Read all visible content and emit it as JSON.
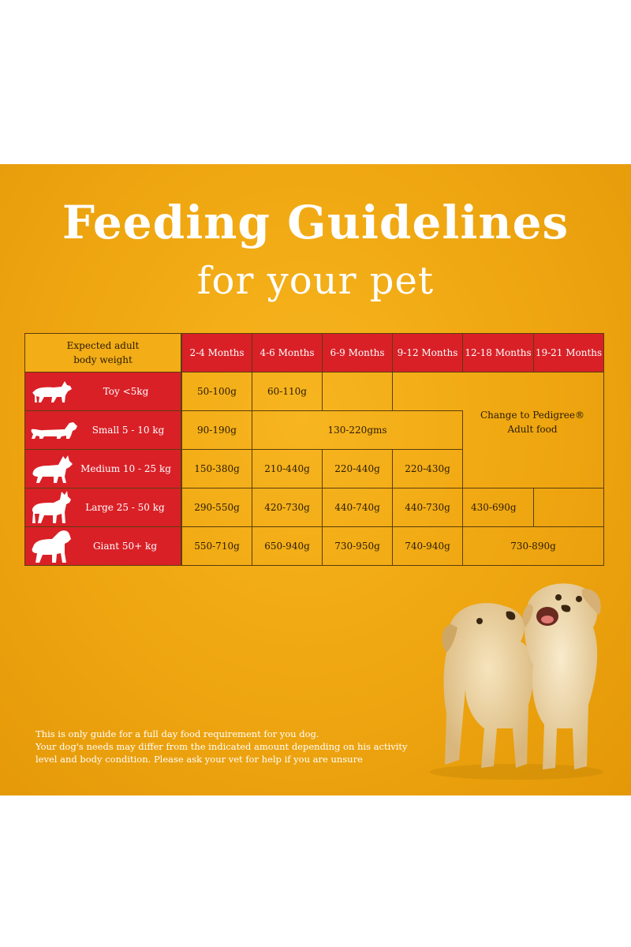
{
  "title": "Feeding Guidelines",
  "subtitle": "for your pet",
  "table": {
    "corner_label": [
      "Expected adult",
      "body weight"
    ],
    "columns": [
      "2-4 Months",
      "4-6 Months",
      "6-9 Months",
      "9-12 Months",
      "12-18 Months",
      "19-21 Months"
    ],
    "rows": [
      {
        "weight": "Toy <5kg",
        "icon": "toy-dog-icon"
      },
      {
        "weight": "Small 5 - 10 kg",
        "icon": "dachshund-icon"
      },
      {
        "weight": "Medium 10 - 25 kg",
        "icon": "medium-dog-icon"
      },
      {
        "weight": "Large 25 - 50 kg",
        "icon": "large-dog-icon"
      },
      {
        "weight": "Giant 50+ kg",
        "icon": "giant-dog-icon"
      }
    ],
    "values": {
      "toy": [
        "50-100g",
        "60-110g"
      ],
      "small": [
        "90-190g",
        "130-220gms"
      ],
      "medium": [
        "150-380g",
        "210-440g",
        "220-440g",
        "220-430g"
      ],
      "large": [
        "290-550g",
        "420-730g",
        "440-740g",
        "440-730g",
        "430-690g"
      ],
      "giant": [
        "550-710g",
        "650-940g",
        "730-950g",
        "740-940g",
        "730-890g"
      ]
    },
    "change_note": [
      "Change to Pedigree®",
      "Adult food"
    ]
  },
  "disclaimer": [
    "This is only guide for a full day food requirement for you dog.",
    "Your dog's needs may differ from the indicated amount depending on his activity",
    "level and body condition. Please ask your vet for help if you are unsure"
  ],
  "colors": {
    "background": "#f0a812",
    "header_red": "#d92027",
    "border": "#5a3d0c",
    "text_white": "#ffffff"
  }
}
